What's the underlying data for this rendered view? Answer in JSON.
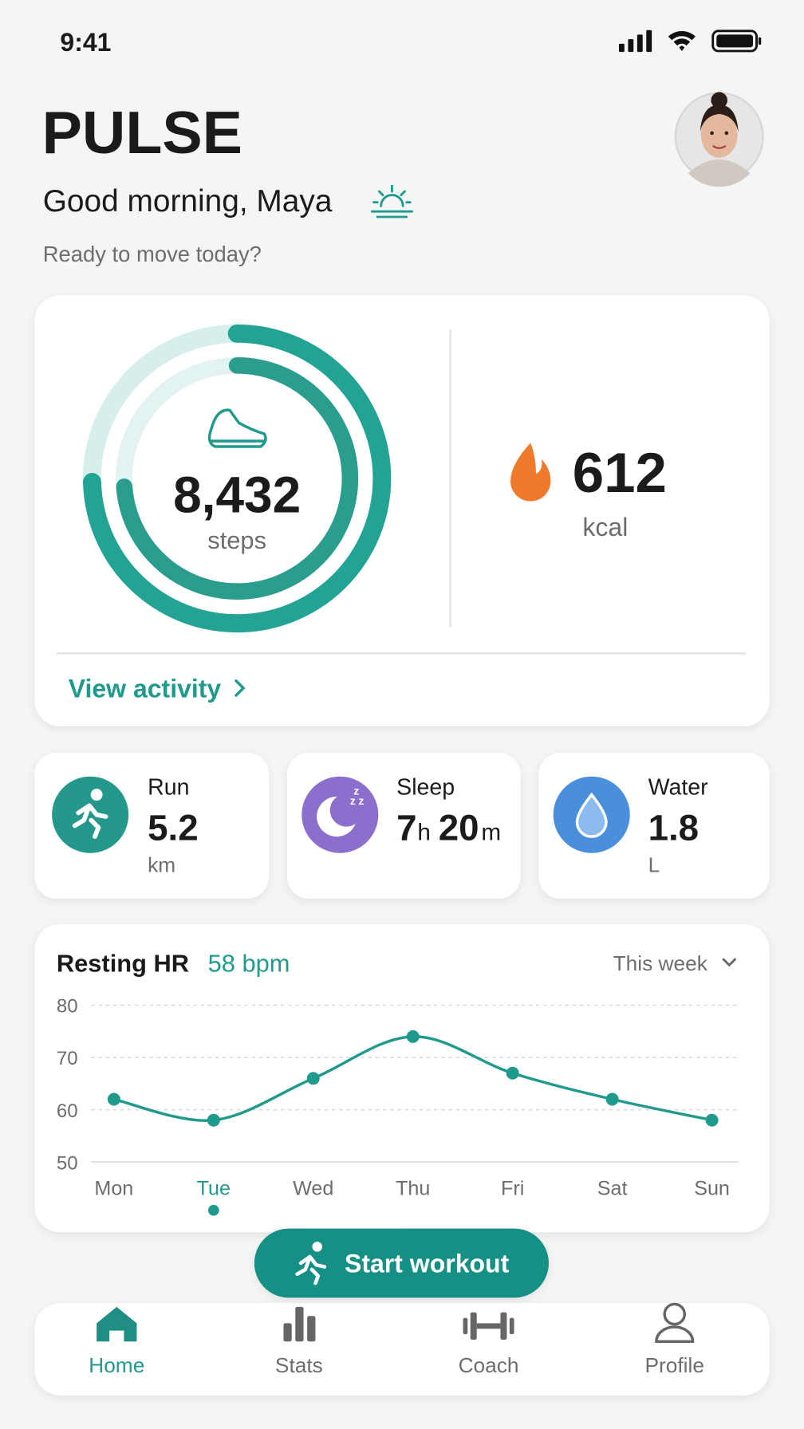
{
  "status": {
    "time": "9:41"
  },
  "header": {
    "title": "PULSE",
    "greeting": "Good morning, Maya",
    "prompt": "Ready to move today?"
  },
  "activity": {
    "steps": "8,432",
    "steps_unit": "steps",
    "calories": "612",
    "calories_unit": "kcal",
    "link": "View activity"
  },
  "stats": [
    {
      "label": "Run",
      "value": "5.2",
      "unit": "km"
    },
    {
      "label": "Sleep",
      "hours": "7",
      "hours_unit": "h",
      "minutes": "20",
      "minutes_unit": "m"
    },
    {
      "label": "Water",
      "value": "1.8",
      "unit": "L"
    }
  ],
  "chart_data": {
    "type": "line",
    "title": "Resting HR",
    "subtitle": "58 bpm",
    "period": "This week",
    "categories": [
      "Mon",
      "Tue",
      "Wed",
      "Thu",
      "Fri",
      "Sat",
      "Sun"
    ],
    "values": [
      62,
      58,
      66,
      74,
      67,
      62,
      58
    ],
    "color": "#1f9a8d",
    "highlight": 1,
    "ylim": [
      50,
      80
    ],
    "yticks": [
      50,
      60,
      70,
      80
    ],
    "grid": true
  },
  "action": {
    "label": "Start workout"
  },
  "nav": [
    "Home",
    "Stats",
    "Coach",
    "Profile"
  ]
}
